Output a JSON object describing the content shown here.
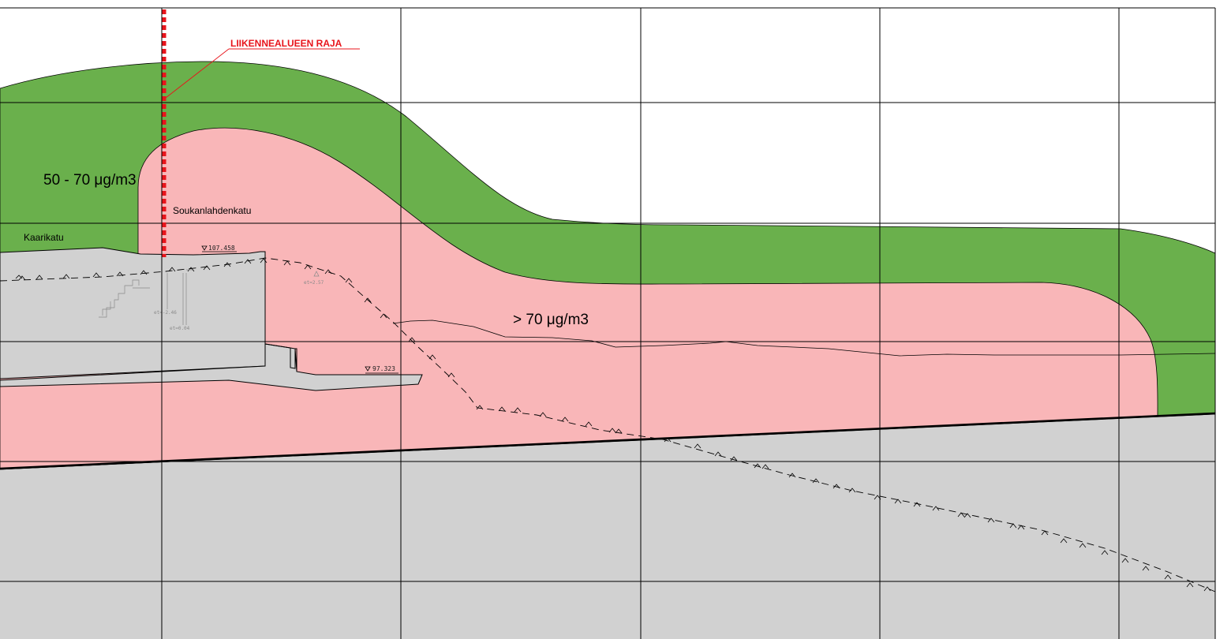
{
  "colors": {
    "zone_50_70": "#6ab04c",
    "zone_over_70": "#f9b6b8",
    "ground": "#d1d1d1",
    "boundary_line": "#e8141b"
  },
  "labels": {
    "traffic_area_boundary": "LIIKENNEALUEEN RAJA",
    "zone_50_70": "50 - 70 μg/m3",
    "zone_over_70": "> 70 μg/m3",
    "street_soukanlahdenkatu": "Soukanlahdenkatu",
    "street_kaarikatu": "Kaarikatu",
    "elevation_top": "107.458",
    "elevation_bottom": "97.323",
    "annotation_et_1": "et=-2.46",
    "annotation_et_2": "et=0.04",
    "annotation_et_3": "et=2.57"
  }
}
